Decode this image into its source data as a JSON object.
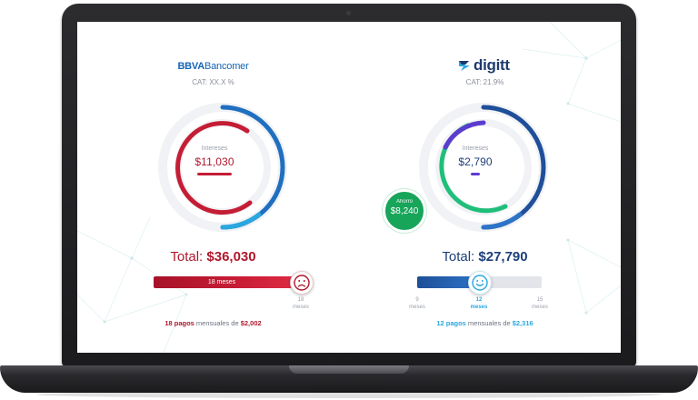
{
  "left": {
    "brand_bold": "BBVA",
    "brand_rest": "Bancomer",
    "cat": "CAT: XX.X %",
    "interest_label": "Intereses",
    "interest_value": "$11,030",
    "total_label": "Total:",
    "total_value": "$36,030",
    "bar_label": "18 meses",
    "mood_icon": "sad-face-icon",
    "tick_num": "18",
    "tick_unit": "meses",
    "summary_count": "18 pagos",
    "summary_mid": "mensuales de",
    "summary_amount": "$2,002",
    "ring_progress": 0.82,
    "colors": {
      "accent": "#b0182c",
      "ring_blue": "#1f6fc1"
    }
  },
  "right": {
    "brand": "digitt",
    "cat": "CAT: 21.9%",
    "interest_label": "Intereses",
    "interest_value": "$2,790",
    "savings_label": "Ahorro",
    "savings_value": "$8,240",
    "total_label": "Total:",
    "total_value": "$27,790",
    "mood_icon": "happy-face-icon",
    "slider_level": 0.5,
    "ticks": [
      {
        "num": "9",
        "unit": "meses",
        "active": false
      },
      {
        "num": "12",
        "unit": "meses",
        "active": true
      },
      {
        "num": "15",
        "unit": "meses",
        "active": false
      }
    ],
    "summary_count": "12 pagos",
    "summary_mid": "mensuales de",
    "summary_amount": "$2,316",
    "colors": {
      "accent": "#1d3f7a",
      "green": "#17a55a",
      "purple": "#5b3ccf",
      "cyan": "#2aa7df"
    }
  }
}
